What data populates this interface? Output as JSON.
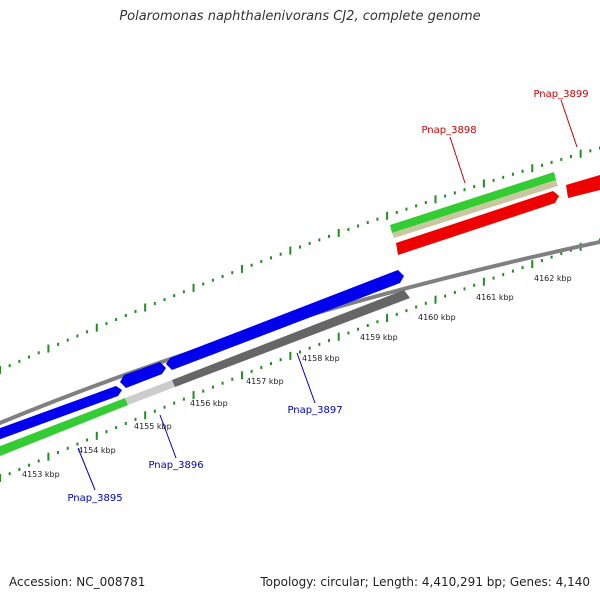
{
  "title": "Polaromonas naphthalenivorans CJ2, complete genome",
  "accession_text": "Accession: NC_008781",
  "summary_text": "Topology: circular; Length: 4,410,291 bp; Genes: 4,140",
  "colors": {
    "backbone": "#808080",
    "tick": "#228b22",
    "forward_cds": "#0000ee",
    "reverse_cds": "#ee0000",
    "gc_skew_green": "#33cc33",
    "gc_light": "#c8c8a0",
    "gray_feature": "#666666",
    "light_gray_feature": "#cccccc",
    "label_blue": "#0000bb",
    "label_red": "#cc0000"
  },
  "kbp_labels": [
    "4153 kbp",
    "4154 kbp",
    "4155 kbp",
    "4156 kbp",
    "4157 kbp",
    "4158 kbp",
    "4159 kbp",
    "4160 kbp",
    "4161 kbp",
    "4162 kbp"
  ],
  "genes": [
    {
      "name": "Pnap_3895",
      "strand": "forward"
    },
    {
      "name": "Pnap_3896",
      "strand": "forward"
    },
    {
      "name": "Pnap_3897",
      "strand": "forward"
    },
    {
      "name": "Pnap_3898",
      "strand": "reverse"
    },
    {
      "name": "Pnap_3899",
      "strand": "reverse"
    }
  ]
}
